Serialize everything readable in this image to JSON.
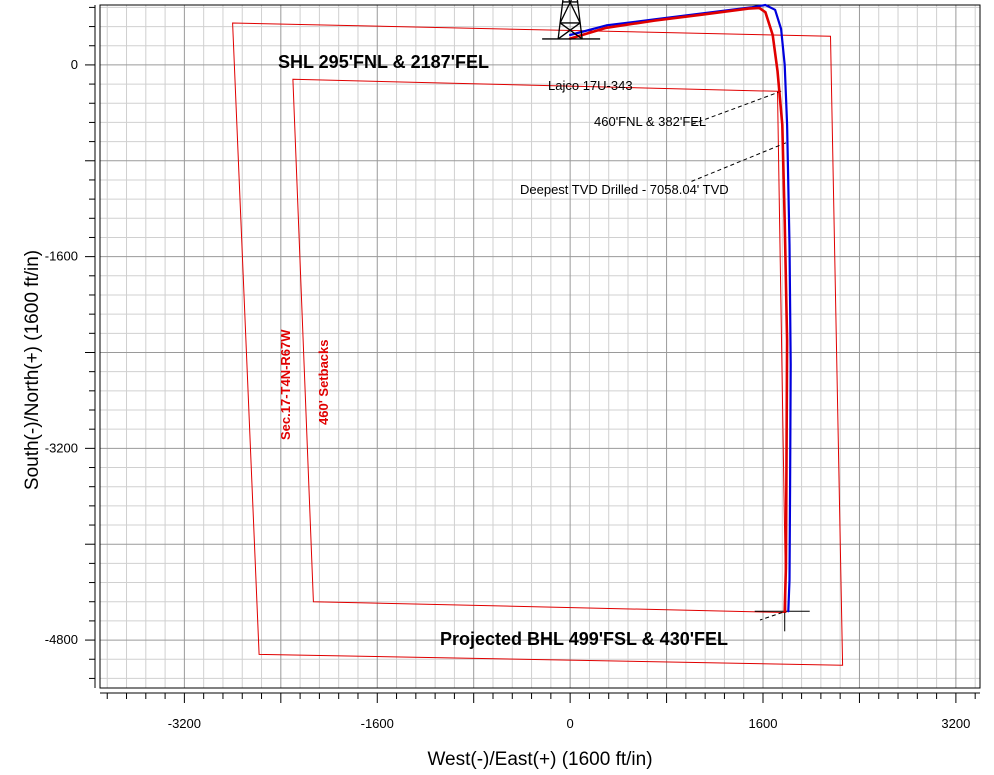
{
  "chart_data": {
    "type": "line",
    "title": "",
    "xlabel": "West(-)/East(+) (1600 ft/in)",
    "ylabel": "South(-)/North(+) (1600 ft/in)",
    "xlim": [
      -3900,
      3400
    ],
    "ylim": [
      -5200,
      500
    ],
    "x_ticks": [
      -3200,
      -1600,
      0,
      1600,
      3200
    ],
    "y_ticks": [
      0,
      -1600,
      -3200,
      -4800
    ],
    "grid": true,
    "minor_grid_step": 160,
    "major_grid_step": 800,
    "series": [
      {
        "name": "",
        "color": "#0000dd",
        "points": [
          [
            0,
            250
          ],
          [
            300,
            330
          ],
          [
            700,
            380
          ],
          [
            1100,
            430
          ],
          [
            1500,
            480
          ],
          [
            1620,
            500
          ],
          [
            1700,
            460
          ],
          [
            1750,
            300
          ],
          [
            1780,
            0
          ],
          [
            1800,
            -500
          ],
          [
            1820,
            -1500
          ],
          [
            1830,
            -2500
          ],
          [
            1825,
            -3500
          ],
          [
            1820,
            -4300
          ],
          [
            1810,
            -4560
          ]
        ]
      },
      {
        "name": "",
        "color": "#e00000",
        "points": [
          [
            0,
            220
          ],
          [
            300,
            310
          ],
          [
            700,
            370
          ],
          [
            1100,
            420
          ],
          [
            1480,
            470
          ],
          [
            1570,
            475
          ],
          [
            1620,
            440
          ],
          [
            1680,
            250
          ],
          [
            1720,
            -50
          ],
          [
            1760,
            -500
          ],
          [
            1780,
            -1300
          ],
          [
            1800,
            -2300
          ],
          [
            1795,
            -3300
          ],
          [
            1790,
            -4200
          ],
          [
            1780,
            -4560
          ]
        ]
      }
    ],
    "polygons": [
      {
        "name": "Sec.17-T4N-R67W",
        "color": "#e00000",
        "points": [
          [
            -2800,
            350
          ],
          [
            2160,
            240
          ],
          [
            2260,
            -5010
          ],
          [
            -2580,
            -4920
          ]
        ]
      },
      {
        "name": "460' Setbacks",
        "color": "#e00000",
        "points": [
          [
            -2300,
            -120
          ],
          [
            1720,
            -220
          ],
          [
            1790,
            -4570
          ],
          [
            -2130,
            -4480
          ]
        ]
      }
    ],
    "well_symbol": {
      "x": 0,
      "y": 250
    },
    "annotations": [
      {
        "text": "SHL 295'FNL & 2187'FEL"
      },
      {
        "text": "Lajco 17U-343"
      },
      {
        "text": "460'FNL & 382'FEL"
      },
      {
        "text": "Deepest TVD Drilled - 7058.04' TVD"
      },
      {
        "text": "Projected BHL 499'FSL & 430'FEL"
      }
    ]
  }
}
